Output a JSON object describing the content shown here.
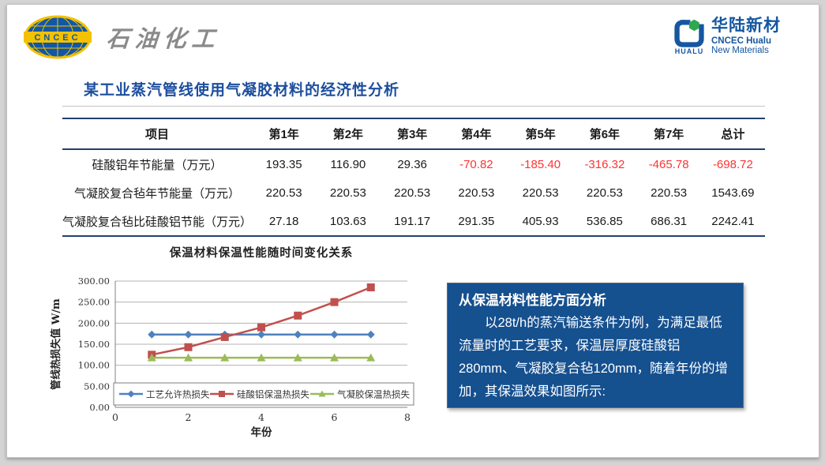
{
  "colors": {
    "accent_blue": "#1c4e9e",
    "table_border_navy": "#23406e",
    "negative_red": "#ff3333",
    "analysis_box_blue": "#15508f",
    "logo_blue": "#1557a0",
    "logo_yellow": "#f2c100"
  },
  "logos": {
    "cncec": {
      "emblem_text": "CNCEC",
      "brand": "石油化工"
    },
    "hualu": {
      "icon_text": "HUALU",
      "name_cn": "华陆新材",
      "line1": "CNCEC Hualu",
      "line2": "New Materials"
    }
  },
  "slide": {
    "title": "某工业蒸汽管线使用气凝胶材料的经济性分析"
  },
  "table": {
    "columns": [
      "项目",
      "第1年",
      "第2年",
      "第3年",
      "第4年",
      "第5年",
      "第6年",
      "第7年",
      "总计"
    ],
    "rows": [
      {
        "label": "硅酸铝年节能量（万元）",
        "values": [
          "193.35",
          "116.90",
          "29.36",
          "-70.82",
          "-185.40",
          "-316.32",
          "-465.78",
          "-698.72"
        ]
      },
      {
        "label": "气凝胶复合毡年节能量（万元）",
        "values": [
          "220.53",
          "220.53",
          "220.53",
          "220.53",
          "220.53",
          "220.53",
          "220.53",
          "1543.69"
        ]
      },
      {
        "label": "气凝胶复合毡比硅酸铝节能（万元）",
        "values": [
          "27.18",
          "103.63",
          "191.17",
          "291.35",
          "405.93",
          "536.85",
          "686.31",
          "2242.41"
        ]
      }
    ],
    "negative_color": "#ff3333"
  },
  "chart_data": {
    "type": "line",
    "title": "保温材料保温性能随时间变化关系",
    "xlabel": "年份",
    "ylabel": "管线热损失值 W/m",
    "xlim": [
      0,
      8
    ],
    "ylim": [
      0,
      300
    ],
    "x_ticks": [
      0,
      2,
      4,
      6,
      8
    ],
    "y_ticks": [
      "0.00",
      "50.00",
      "100.00",
      "150.00",
      "200.00",
      "250.00",
      "300.00"
    ],
    "x": [
      1,
      2,
      3,
      4,
      5,
      6,
      7
    ],
    "series": [
      {
        "name": "工艺允许热损失",
        "marker": "diamond",
        "color": "#4f81bd",
        "values": [
          173,
          173,
          173,
          173,
          173,
          173,
          173
        ]
      },
      {
        "name": "硅酸铝保温热损失",
        "marker": "square",
        "color": "#c0504d",
        "values": [
          125,
          143,
          167,
          190,
          218,
          250,
          285
        ]
      },
      {
        "name": "气凝胶保温热损失",
        "marker": "triangle",
        "color": "#9bbb59",
        "values": [
          118,
          118,
          118,
          118,
          118,
          118,
          118
        ]
      }
    ],
    "legend_position": "bottom-inside",
    "grid": true
  },
  "analysis_box": {
    "heading": "从保温材料性能方面分析",
    "body": "以28t/h的蒸汽输送条件为例，为满足最低流量时的工艺要求，保温层厚度硅酸铝280mm、气凝胶复合毡120mm，随着年份的增加，其保温效果如图所示:"
  }
}
